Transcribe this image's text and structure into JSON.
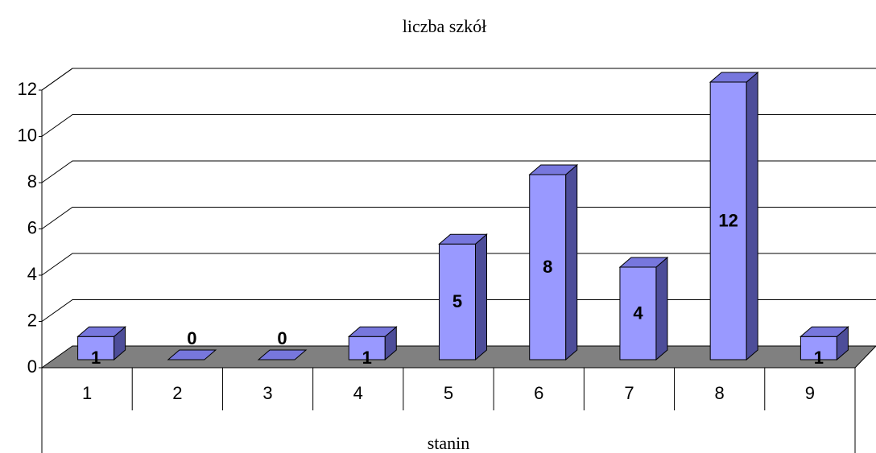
{
  "chart_data": {
    "type": "bar3d",
    "title": "liczba szkół",
    "x_label": "stanin",
    "categories": [
      "1",
      "2",
      "3",
      "4",
      "5",
      "6",
      "7",
      "8",
      "9"
    ],
    "values": [
      1,
      0,
      0,
      1,
      5,
      8,
      4,
      12,
      1
    ],
    "color": "#9999ff",
    "ylim": [
      0,
      12
    ],
    "yticks": [
      0,
      2,
      4,
      6,
      8,
      10,
      12
    ],
    "grid": true
  }
}
